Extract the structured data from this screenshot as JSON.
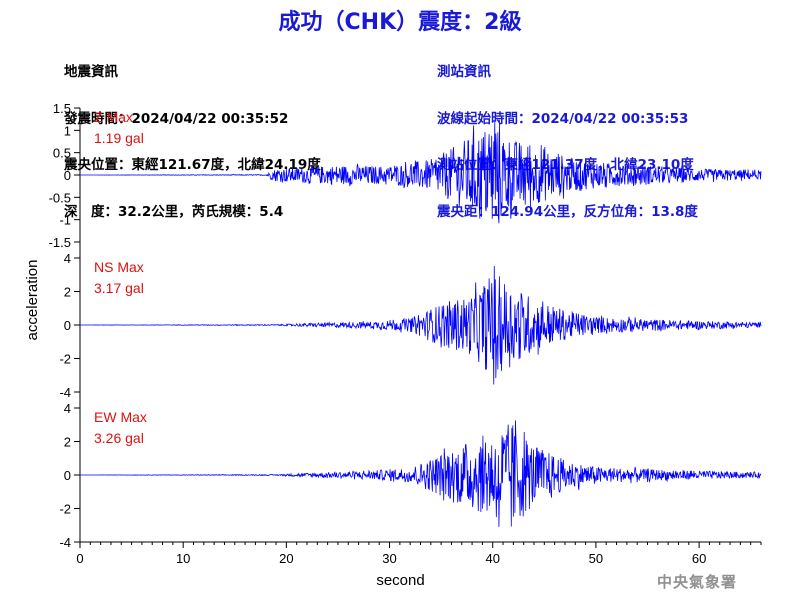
{
  "title": "成功（CHK）震度：2級",
  "info_left": {
    "heading": "地震資訊",
    "time": "發震時間：2024/04/22 00:35:52",
    "location": "震央位置：東經121.67度，北緯24.19度",
    "depth": "深　度：32.2公里，芮氏規模：5.4"
  },
  "info_right": {
    "heading": "測站資訊",
    "arrival": "波線起始時間：2024/04/22 00:35:53",
    "location": "測站位置：東經121.37度，北緯23.10度",
    "distance": "震央距：124.94公里，反方位角：13.8度"
  },
  "agency": "中央氣象署",
  "colors": {
    "trace": "#0000ff",
    "max_label": "#e01010",
    "title": "#1a1ad6"
  },
  "chart_data": [
    {
      "type": "line",
      "component": "Z",
      "max_label": "Z Max",
      "max_value": "1.19 gal",
      "ylabel": "acceleration",
      "xlabel": "",
      "ylim": [
        -1.5,
        1.5
      ],
      "yticks": [
        "1.5",
        "1",
        "0.5",
        "0",
        "-0.5",
        "-1",
        "-1.5"
      ],
      "yticks_values": [
        1.5,
        1,
        0.5,
        0,
        -0.5,
        -1,
        -1.5
      ],
      "xlim": [
        0,
        66
      ],
      "grid": false,
      "envelope": [
        [
          0,
          0.0
        ],
        [
          18,
          0.01
        ],
        [
          19,
          0.15
        ],
        [
          25,
          0.22
        ],
        [
          30,
          0.2
        ],
        [
          31,
          0.25
        ],
        [
          34,
          0.35
        ],
        [
          36,
          0.6
        ],
        [
          38,
          0.9
        ],
        [
          40,
          1.19
        ],
        [
          42,
          0.8
        ],
        [
          45,
          0.6
        ],
        [
          48,
          0.35
        ],
        [
          52,
          0.25
        ],
        [
          56,
          0.2
        ],
        [
          60,
          0.14
        ],
        [
          66,
          0.1
        ]
      ],
      "peaks": [
        {
          "t": 40.2,
          "v": 1.19
        },
        {
          "t": 40.6,
          "v": -1.08
        }
      ]
    },
    {
      "type": "line",
      "component": "NS",
      "max_label": "NS Max",
      "max_value": "3.17 gal",
      "ylabel": "acceleration",
      "xlabel": "",
      "ylim": [
        -4,
        4
      ],
      "yticks": [
        "4",
        "2",
        "0",
        "-2",
        "-4"
      ],
      "yticks_values": [
        4,
        2,
        0,
        -2,
        -4
      ],
      "xlim": [
        0,
        66
      ],
      "grid": false,
      "envelope": [
        [
          0,
          0.0
        ],
        [
          19,
          0.03
        ],
        [
          22,
          0.1
        ],
        [
          28,
          0.2
        ],
        [
          32,
          0.4
        ],
        [
          34,
          1.0
        ],
        [
          36,
          1.5
        ],
        [
          38,
          1.8
        ],
        [
          40,
          3.17
        ],
        [
          42,
          2.4
        ],
        [
          44,
          1.6
        ],
        [
          47,
          0.9
        ],
        [
          50,
          0.5
        ],
        [
          55,
          0.35
        ],
        [
          60,
          0.25
        ],
        [
          66,
          0.15
        ]
      ],
      "peaks": [
        {
          "t": 40.3,
          "v": -3.17
        },
        {
          "t": 39.9,
          "v": 2.5
        }
      ]
    },
    {
      "type": "line",
      "component": "EW",
      "max_label": "EW Max",
      "max_value": "3.26 gal",
      "ylabel": "acceleration",
      "xlabel": "second",
      "ylim": [
        -4,
        4
      ],
      "yticks": [
        "4",
        "2",
        "0",
        "-2",
        "-4"
      ],
      "yticks_values": [
        4,
        2,
        0,
        -2,
        -4
      ],
      "xlim": [
        0,
        66
      ],
      "xticks": [
        "0",
        "10",
        "20",
        "30",
        "40",
        "50",
        "60"
      ],
      "xticks_values": [
        0,
        10,
        20,
        30,
        40,
        50,
        60
      ],
      "grid": false,
      "envelope": [
        [
          0,
          0.0
        ],
        [
          19,
          0.03
        ],
        [
          22,
          0.12
        ],
        [
          28,
          0.25
        ],
        [
          32,
          0.45
        ],
        [
          34,
          1.0
        ],
        [
          36,
          1.6
        ],
        [
          38,
          2.1
        ],
        [
          40,
          2.6
        ],
        [
          42,
          3.26
        ],
        [
          44,
          1.8
        ],
        [
          47,
          0.9
        ],
        [
          50,
          0.5
        ],
        [
          55,
          0.35
        ],
        [
          60,
          0.25
        ],
        [
          66,
          0.15
        ]
      ],
      "peaks": [
        {
          "t": 42.2,
          "v": 3.26
        },
        {
          "t": 40.6,
          "v": -3.1
        }
      ]
    }
  ]
}
